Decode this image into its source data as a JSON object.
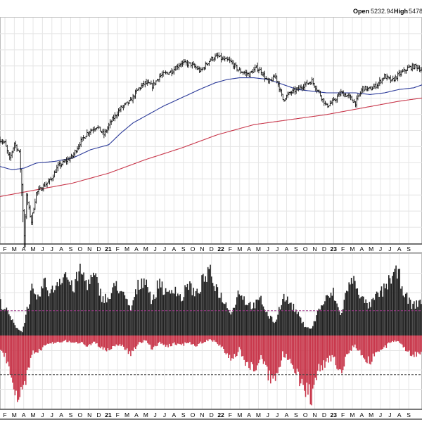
{
  "header": {
    "open_label": "Open",
    "open_value": "5232.94",
    "high_label": "High",
    "high_value": "5478."
  },
  "chart_data": {
    "type": "ohlc-with-moving-averages-and-breadth-histogram",
    "title": "",
    "grid": true,
    "x_ticks": [
      {
        "label": "F"
      },
      {
        "label": "M"
      },
      {
        "label": "A"
      },
      {
        "label": "M"
      },
      {
        "label": "J"
      },
      {
        "label": "J"
      },
      {
        "label": "A"
      },
      {
        "label": "S"
      },
      {
        "label": "O"
      },
      {
        "label": "N"
      },
      {
        "label": "D"
      },
      {
        "label": "21",
        "year": true
      },
      {
        "label": "F"
      },
      {
        "label": "M"
      },
      {
        "label": "A"
      },
      {
        "label": "M"
      },
      {
        "label": "J"
      },
      {
        "label": "J"
      },
      {
        "label": "A"
      },
      {
        "label": "S"
      },
      {
        "label": "O"
      },
      {
        "label": "N"
      },
      {
        "label": "D"
      },
      {
        "label": "22",
        "year": true
      },
      {
        "label": "F"
      },
      {
        "label": "M"
      },
      {
        "label": "A"
      },
      {
        "label": "M"
      },
      {
        "label": "J"
      },
      {
        "label": "J"
      },
      {
        "label": "A"
      },
      {
        "label": "S"
      },
      {
        "label": "O"
      },
      {
        "label": "N"
      },
      {
        "label": "D"
      },
      {
        "label": "23",
        "year": true
      },
      {
        "label": "F"
      },
      {
        "label": "M"
      },
      {
        "label": "A"
      },
      {
        "label": "M"
      },
      {
        "label": "J"
      },
      {
        "label": "J"
      },
      {
        "label": "A"
      },
      {
        "label": "S"
      }
    ],
    "price": {
      "series_color": "#000000",
      "keypoints": [
        [
          0,
          0.52
        ],
        [
          4,
          0.5
        ],
        [
          8,
          0.4
        ],
        [
          12,
          0.5
        ],
        [
          16,
          0.44
        ],
        [
          18,
          0.25
        ],
        [
          20,
          -0.05
        ],
        [
          22,
          0.18
        ],
        [
          26,
          0.03
        ],
        [
          30,
          0.2
        ],
        [
          34,
          0.23
        ],
        [
          42,
          0.28
        ],
        [
          48,
          0.36
        ],
        [
          56,
          0.4
        ],
        [
          60,
          0.42
        ],
        [
          66,
          0.5
        ],
        [
          72,
          0.56
        ],
        [
          80,
          0.6
        ],
        [
          86,
          0.55
        ],
        [
          92,
          0.63
        ],
        [
          100,
          0.71
        ],
        [
          108,
          0.75
        ],
        [
          114,
          0.82
        ],
        [
          120,
          0.86
        ],
        [
          126,
          0.84
        ],
        [
          132,
          0.9
        ],
        [
          142,
          0.93
        ],
        [
          150,
          0.98
        ],
        [
          158,
          0.97
        ],
        [
          166,
          0.93
        ],
        [
          174,
          1.0
        ],
        [
          180,
          1.02
        ],
        [
          184,
          1.0
        ],
        [
          190,
          0.99
        ],
        [
          198,
          0.93
        ],
        [
          206,
          0.91
        ],
        [
          212,
          0.95
        ],
        [
          216,
          0.93
        ],
        [
          222,
          0.86
        ],
        [
          228,
          0.9
        ],
        [
          234,
          0.76
        ],
        [
          240,
          0.8
        ],
        [
          246,
          0.82
        ],
        [
          252,
          0.85
        ],
        [
          258,
          0.87
        ],
        [
          264,
          0.8
        ],
        [
          270,
          0.72
        ],
        [
          276,
          0.75
        ],
        [
          282,
          0.8
        ],
        [
          288,
          0.78
        ],
        [
          294,
          0.74
        ],
        [
          300,
          0.83
        ],
        [
          306,
          0.82
        ],
        [
          312,
          0.85
        ],
        [
          318,
          0.9
        ],
        [
          324,
          0.87
        ],
        [
          330,
          0.91
        ],
        [
          338,
          0.95
        ],
        [
          344,
          0.96
        ],
        [
          350,
          0.93
        ]
      ],
      "ylim": [
        -0.1,
        1.25
      ]
    },
    "moving_average_short": {
      "color": "#2b3a99",
      "keypoints": [
        [
          0,
          0.36
        ],
        [
          10,
          0.34
        ],
        [
          20,
          0.35
        ],
        [
          30,
          0.38
        ],
        [
          45,
          0.39
        ],
        [
          60,
          0.41
        ],
        [
          75,
          0.46
        ],
        [
          90,
          0.49
        ],
        [
          100,
          0.56
        ],
        [
          110,
          0.62
        ],
        [
          120,
          0.66
        ],
        [
          135,
          0.72
        ],
        [
          150,
          0.77
        ],
        [
          165,
          0.82
        ],
        [
          178,
          0.86
        ],
        [
          188,
          0.88
        ],
        [
          198,
          0.89
        ],
        [
          210,
          0.89
        ],
        [
          222,
          0.88
        ],
        [
          234,
          0.85
        ],
        [
          246,
          0.82
        ],
        [
          258,
          0.81
        ],
        [
          270,
          0.8
        ],
        [
          282,
          0.8
        ],
        [
          294,
          0.8
        ],
        [
          306,
          0.79
        ],
        [
          318,
          0.8
        ],
        [
          330,
          0.82
        ],
        [
          342,
          0.83
        ],
        [
          350,
          0.85
        ]
      ]
    },
    "moving_average_long": {
      "color": "#c8374b",
      "keypoints": [
        [
          0,
          0.18
        ],
        [
          30,
          0.22
        ],
        [
          60,
          0.26
        ],
        [
          90,
          0.32
        ],
        [
          120,
          0.4
        ],
        [
          150,
          0.47
        ],
        [
          180,
          0.55
        ],
        [
          210,
          0.61
        ],
        [
          240,
          0.64
        ],
        [
          270,
          0.67
        ],
        [
          300,
          0.71
        ],
        [
          330,
          0.75
        ],
        [
          350,
          0.77
        ]
      ]
    },
    "breadth": {
      "bar_count": 350,
      "positive_color": "#222222",
      "negative_color": "#c8374b",
      "upper_reference": 0.38,
      "lower_reference": -0.6,
      "upper_reference_color": "#a03a8c",
      "lower_reference_color": "#444444",
      "positive_keypoints": [
        [
          0,
          0.5
        ],
        [
          6,
          0.35
        ],
        [
          12,
          0.15
        ],
        [
          18,
          0.05
        ],
        [
          22,
          0.4
        ],
        [
          26,
          0.7
        ],
        [
          30,
          0.5
        ],
        [
          36,
          0.8
        ],
        [
          42,
          0.65
        ],
        [
          48,
          0.85
        ],
        [
          54,
          0.95
        ],
        [
          60,
          0.7
        ],
        [
          66,
          1.0
        ],
        [
          72,
          0.8
        ],
        [
          78,
          0.9
        ],
        [
          84,
          0.6
        ],
        [
          90,
          0.55
        ],
        [
          96,
          0.8
        ],
        [
          102,
          0.6
        ],
        [
          108,
          0.4
        ],
        [
          114,
          0.75
        ],
        [
          120,
          0.9
        ],
        [
          126,
          0.5
        ],
        [
          132,
          0.85
        ],
        [
          138,
          0.6
        ],
        [
          144,
          0.75
        ],
        [
          150,
          0.55
        ],
        [
          156,
          0.8
        ],
        [
          162,
          0.6
        ],
        [
          168,
          0.85
        ],
        [
          174,
          0.95
        ],
        [
          180,
          0.7
        ],
        [
          186,
          0.5
        ],
        [
          192,
          0.35
        ],
        [
          198,
          0.7
        ],
        [
          204,
          0.5
        ],
        [
          210,
          0.45
        ],
        [
          216,
          0.55
        ],
        [
          222,
          0.3
        ],
        [
          228,
          0.2
        ],
        [
          234,
          0.6
        ],
        [
          240,
          0.5
        ],
        [
          246,
          0.35
        ],
        [
          252,
          0.15
        ],
        [
          258,
          0.1
        ],
        [
          264,
          0.4
        ],
        [
          270,
          0.55
        ],
        [
          276,
          0.65
        ],
        [
          282,
          0.3
        ],
        [
          288,
          0.75
        ],
        [
          294,
          0.85
        ],
        [
          300,
          0.55
        ],
        [
          306,
          0.45
        ],
        [
          312,
          0.6
        ],
        [
          318,
          0.7
        ],
        [
          324,
          0.9
        ],
        [
          330,
          0.95
        ],
        [
          336,
          0.6
        ],
        [
          342,
          0.45
        ],
        [
          350,
          0.55
        ]
      ],
      "negative_keypoints": [
        [
          0,
          -0.2
        ],
        [
          6,
          -0.4
        ],
        [
          12,
          -0.8
        ],
        [
          18,
          -1.0
        ],
        [
          22,
          -0.6
        ],
        [
          26,
          -0.25
        ],
        [
          30,
          -0.3
        ],
        [
          36,
          -0.15
        ],
        [
          42,
          -0.12
        ],
        [
          48,
          -0.1
        ],
        [
          54,
          -0.08
        ],
        [
          60,
          -0.12
        ],
        [
          66,
          -0.1
        ],
        [
          72,
          -0.15
        ],
        [
          78,
          -0.1
        ],
        [
          84,
          -0.2
        ],
        [
          90,
          -0.25
        ],
        [
          96,
          -0.12
        ],
        [
          102,
          -0.18
        ],
        [
          108,
          -0.28
        ],
        [
          114,
          -0.12
        ],
        [
          120,
          -0.08
        ],
        [
          126,
          -0.2
        ],
        [
          132,
          -0.1
        ],
        [
          138,
          -0.18
        ],
        [
          144,
          -0.12
        ],
        [
          150,
          -0.15
        ],
        [
          156,
          -0.1
        ],
        [
          162,
          -0.15
        ],
        [
          168,
          -0.1
        ],
        [
          174,
          -0.06
        ],
        [
          180,
          -0.12
        ],
        [
          186,
          -0.25
        ],
        [
          192,
          -0.4
        ],
        [
          198,
          -0.2
        ],
        [
          204,
          -0.45
        ],
        [
          210,
          -0.5
        ],
        [
          216,
          -0.35
        ],
        [
          222,
          -0.6
        ],
        [
          228,
          -0.7
        ],
        [
          234,
          -0.3
        ],
        [
          240,
          -0.35
        ],
        [
          246,
          -0.55
        ],
        [
          252,
          -0.85
        ],
        [
          258,
          -0.95
        ],
        [
          264,
          -0.5
        ],
        [
          270,
          -0.4
        ],
        [
          276,
          -0.3
        ],
        [
          282,
          -0.6
        ],
        [
          288,
          -0.25
        ],
        [
          294,
          -0.15
        ],
        [
          300,
          -0.3
        ],
        [
          306,
          -0.4
        ],
        [
          312,
          -0.25
        ],
        [
          318,
          -0.2
        ],
        [
          324,
          -0.1
        ],
        [
          330,
          -0.08
        ],
        [
          336,
          -0.2
        ],
        [
          342,
          -0.3
        ],
        [
          350,
          -0.25
        ]
      ],
      "ylim": [
        -1.12,
        1.25
      ]
    }
  }
}
